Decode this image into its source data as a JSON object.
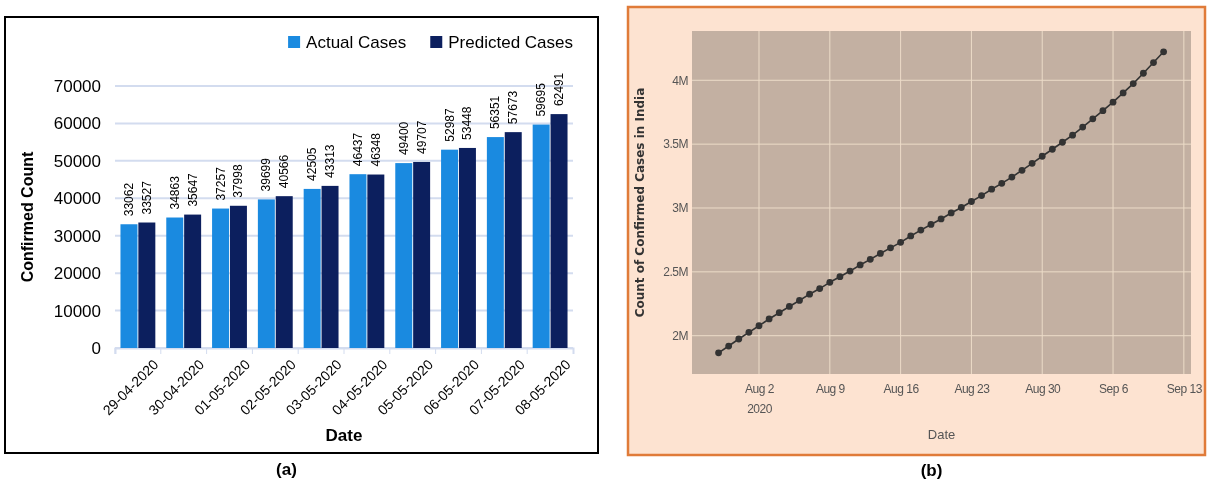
{
  "chart_data": [
    {
      "type": "bar",
      "xlabel": "Date",
      "ylabel": "Confirmed Count",
      "annotations": [
        "(a)"
      ],
      "categories": [
        "29-04-2020",
        "30-04-2020",
        "01-05-2020",
        "02-05-2020",
        "03-05-2020",
        "04-05-2020",
        "05-05-2020",
        "06-05-2020",
        "07-05-2020",
        "08-05-2020"
      ],
      "series": [
        {
          "name": "Actual Cases",
          "color": "#1a8ae0",
          "values": [
            33062,
            34863,
            37257,
            39699,
            42505,
            46437,
            49400,
            52987,
            56351,
            59695
          ]
        },
        {
          "name": "Predicted Cases",
          "color": "#0c1f5e",
          "values": [
            33527,
            35647,
            37998,
            40566,
            43313,
            46348,
            49707,
            53448,
            57673,
            62491
          ]
        }
      ],
      "ylim": [
        0,
        70000
      ],
      "yticks": [
        0,
        10000,
        20000,
        30000,
        40000,
        50000,
        60000,
        70000
      ],
      "grid": "y",
      "legend": "top right",
      "data_labels": true
    },
    {
      "type": "line",
      "xlabel": "Date",
      "ylabel": "Count of Confirmed Cases in India",
      "annotations": [
        "(b)"
      ],
      "series": [
        {
          "color": "#333333",
          "x": [
            "2020-07-29",
            "2020-07-30",
            "2020-07-31",
            "2020-08-01",
            "2020-08-02",
            "2020-08-03",
            "2020-08-04",
            "2020-08-05",
            "2020-08-06",
            "2020-08-07",
            "2020-08-08",
            "2020-08-09",
            "2020-08-10",
            "2020-08-11",
            "2020-08-12",
            "2020-08-13",
            "2020-08-14",
            "2020-08-15",
            "2020-08-16",
            "2020-08-17",
            "2020-08-18",
            "2020-08-19",
            "2020-08-20",
            "2020-08-21",
            "2020-08-22",
            "2020-08-23",
            "2020-08-24",
            "2020-08-25",
            "2020-08-26",
            "2020-08-27",
            "2020-08-28",
            "2020-08-29",
            "2020-08-30",
            "2020-08-31",
            "2020-09-01",
            "2020-09-02",
            "2020-09-03",
            "2020-09-04",
            "2020-09-05",
            "2020-09-06",
            "2020-09-07",
            "2020-09-08",
            "2020-09-09",
            "2020-09-10",
            "2020-09-11"
          ],
          "values": [
            1866000,
            1919000,
            1974000,
            2026000,
            2078000,
            2131000,
            2180000,
            2229000,
            2276000,
            2325000,
            2369000,
            2418000,
            2462000,
            2506000,
            2554000,
            2598000,
            2644000,
            2688000,
            2731000,
            2781000,
            2827000,
            2871000,
            2914000,
            2961000,
            3004000,
            3051000,
            3097000,
            3147000,
            3193000,
            3242000,
            3295000,
            3350000,
            3405000,
            3460000,
            3515000,
            3570000,
            3634000,
            3698000,
            3762000,
            3829000,
            3901000,
            3974000,
            4055000,
            4139000,
            4223000
          ]
        }
      ],
      "xlim": [
        "2020-07-26T09:00",
        "2020-09-13T17:00"
      ],
      "xticks": [
        {
          "value": "2020-08-02",
          "label": "Aug 2\n2020"
        },
        {
          "value": "2020-08-09",
          "label": "Aug 9"
        },
        {
          "value": "2020-08-16",
          "label": "Aug 16"
        },
        {
          "value": "2020-08-23",
          "label": "Aug 23"
        },
        {
          "value": "2020-08-30",
          "label": "Aug 30"
        },
        {
          "value": "2020-09-06",
          "label": "Sep 6"
        },
        {
          "value": "2020-09-13",
          "label": "Sep 13"
        }
      ],
      "ylim": [
        1700000,
        4386000
      ],
      "yticks": [
        {
          "value": 2000000,
          "label": "2M"
        },
        {
          "value": 2500000,
          "label": "2.5M"
        },
        {
          "value": 3000000,
          "label": "3M"
        },
        {
          "value": 3500000,
          "label": "3.5M"
        },
        {
          "value": 4000000,
          "label": "4M"
        }
      ],
      "grid": true,
      "marker": "circle",
      "line_style": "solid"
    }
  ]
}
